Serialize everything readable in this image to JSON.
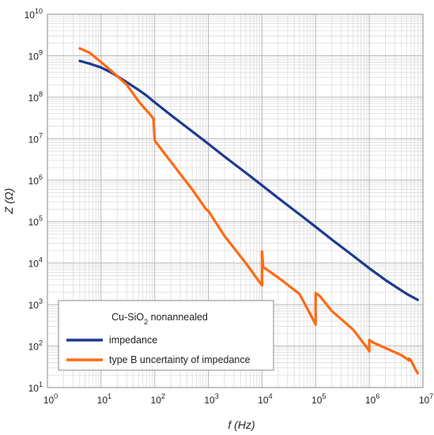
{
  "chart_data": {
    "type": "line",
    "title": "",
    "xlabel": "f (Hz)",
    "ylabel": "Z (Ω)",
    "x_scale": "log",
    "y_scale": "log",
    "xlim": [
      1,
      10000000
    ],
    "ylim": [
      10,
      10000000000
    ],
    "grid": true,
    "legend_position": "bottom-left",
    "legend_title": "Cu-SiO2 nonannealed",
    "x_tick_labels": [
      "10^0",
      "10^1",
      "10^2",
      "10^3",
      "10^4",
      "10^5",
      "10^6",
      "10^7"
    ],
    "y_tick_labels": [
      "10^1",
      "10^2",
      "10^3",
      "10^4",
      "10^5",
      "10^6",
      "10^7",
      "10^8",
      "10^9",
      "10^10"
    ],
    "series": [
      {
        "name": "impedance",
        "color": "#1f3a93",
        "x": [
          4,
          6,
          10,
          15,
          20,
          30,
          50,
          70,
          100,
          200,
          500,
          1000,
          2000,
          5000,
          10000,
          20000,
          50000,
          100000,
          200000,
          500000,
          1000000,
          2000000,
          5000000,
          8000000
        ],
        "y": [
          750000000,
          650000000,
          520000000,
          400000000,
          320000000,
          230000000,
          150000000,
          110000000,
          75000000,
          37000000,
          15000000,
          7500000,
          3700000,
          1500000,
          750000,
          370000,
          150000,
          75000,
          37000,
          15000,
          7500,
          3900,
          1800,
          1300
        ]
      },
      {
        "name": "type B uncertainty of impedance",
        "color": "#ff6a13",
        "x": [
          4,
          6,
          10,
          15,
          20,
          30,
          50,
          60,
          80,
          95,
          98,
          100,
          100,
          150,
          200,
          300,
          500,
          900,
          1000,
          1100,
          2000,
          5000,
          9800,
          10000,
          10000,
          10500,
          20000,
          50000,
          98000,
          100000,
          100000,
          120000,
          200000,
          500000,
          980000,
          1000000,
          1000000,
          1200000,
          2000000,
          4000000,
          5500000,
          5500000,
          6000000,
          7000000,
          8000000
        ],
        "y": [
          1500000000,
          1200000000,
          700000000,
          450000000,
          320000000,
          200000000,
          80000000,
          60000000,
          40000000,
          30000000,
          15000000,
          9500000,
          9000000,
          4500000,
          2800000,
          1400000,
          600000,
          200000,
          180000,
          150000,
          45000,
          10000,
          3000,
          2900,
          19000,
          8000,
          4500,
          1800,
          350,
          330,
          1900,
          1600,
          700,
          250,
          80,
          75,
          140,
          120,
          90,
          60,
          45,
          50,
          45,
          30,
          22
        ]
      }
    ]
  }
}
